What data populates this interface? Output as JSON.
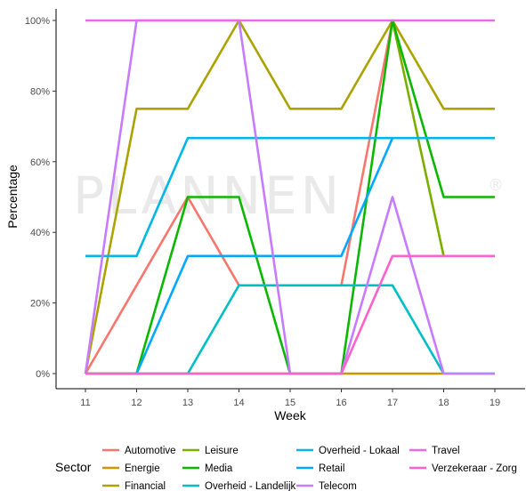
{
  "chart_data": {
    "type": "line",
    "xlabel": "Week",
    "ylabel": "Percentage",
    "x": [
      11,
      12,
      13,
      14,
      15,
      16,
      17,
      18,
      19
    ],
    "xlim": [
      11,
      19
    ],
    "ylim": [
      0,
      100
    ],
    "yticks": [
      0,
      20,
      40,
      60,
      80,
      100
    ],
    "ytick_labels": [
      "0%",
      "20%",
      "40%",
      "60%",
      "80%",
      "100%"
    ],
    "grid": false,
    "legend_title": "Sector",
    "legend_position": "bottom",
    "watermark": "PLANNEN",
    "series": [
      {
        "name": "Automotive",
        "color": "#F8766D",
        "values": [
          0,
          25,
          50,
          25,
          25,
          25,
          100,
          null,
          null
        ]
      },
      {
        "name": "Energie",
        "color": "#CD9600",
        "values": [
          0,
          0,
          0,
          0,
          0,
          0,
          0,
          0,
          null
        ]
      },
      {
        "name": "Financial",
        "color": "#ABA300",
        "values": [
          0,
          75,
          75,
          100,
          75,
          75,
          100,
          75,
          75
        ]
      },
      {
        "name": "Leisure",
        "color": "#7CAE00",
        "values": [
          null,
          null,
          null,
          null,
          null,
          null,
          100,
          33.3,
          null
        ]
      },
      {
        "name": "Media",
        "color": "#0CB702",
        "values": [
          0,
          0,
          50,
          50,
          0,
          0,
          100,
          50,
          50
        ]
      },
      {
        "name": "Overheid - Landelijk",
        "color": "#00BFC4",
        "values": [
          0,
          0,
          0,
          25,
          25,
          25,
          25,
          0,
          0
        ]
      },
      {
        "name": "Overheid - Lokaal",
        "color": "#00B8E7",
        "values": [
          33.3,
          33.3,
          66.7,
          66.7,
          66.7,
          66.7,
          66.7,
          66.7,
          66.7
        ]
      },
      {
        "name": "Retail",
        "color": "#00A9FF",
        "values": [
          null,
          0,
          33.3,
          33.3,
          33.3,
          33.3,
          66.7,
          null,
          null
        ]
      },
      {
        "name": "Telecom",
        "color": "#C77CFF",
        "values": [
          0,
          100,
          100,
          100,
          0,
          0,
          50,
          0,
          0
        ]
      },
      {
        "name": "Travel",
        "color": "#ED68ED",
        "values": [
          100,
          100,
          100,
          100,
          100,
          100,
          100,
          100,
          100
        ]
      },
      {
        "name": "Verzekeraar - Zorg",
        "color": "#FF61CC",
        "values": [
          0,
          0,
          0,
          0,
          0,
          0,
          33.3,
          33.3,
          33.3
        ]
      }
    ]
  }
}
